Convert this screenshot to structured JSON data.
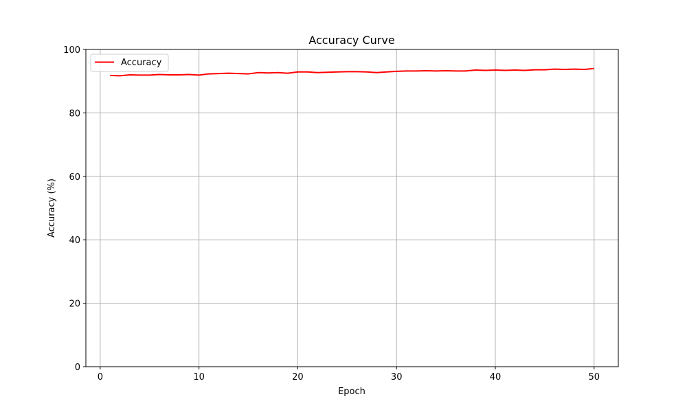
{
  "chart_data": {
    "type": "line",
    "title": "Accuracy Curve",
    "xlabel": "Epoch",
    "ylabel": "Accuracy (%)",
    "xlim": [
      -1.45,
      52.45
    ],
    "ylim": [
      0,
      100
    ],
    "xticks": [
      0,
      10,
      20,
      30,
      40,
      50
    ],
    "yticks": [
      0,
      20,
      40,
      60,
      80,
      100
    ],
    "grid": true,
    "legend_position": "upper-left",
    "series": [
      {
        "name": "Accuracy",
        "color": "#ff0000",
        "x": [
          1,
          2,
          3,
          4,
          5,
          6,
          7,
          8,
          9,
          10,
          11,
          12,
          13,
          14,
          15,
          16,
          17,
          18,
          19,
          20,
          21,
          22,
          23,
          24,
          25,
          26,
          27,
          28,
          29,
          30,
          31,
          32,
          33,
          34,
          35,
          36,
          37,
          38,
          39,
          40,
          41,
          42,
          43,
          44,
          45,
          46,
          47,
          48,
          49,
          50
        ],
        "y": [
          91.8,
          91.7,
          92.0,
          91.9,
          91.9,
          92.1,
          92.0,
          92.0,
          92.1,
          91.9,
          92.3,
          92.4,
          92.5,
          92.4,
          92.3,
          92.7,
          92.6,
          92.7,
          92.5,
          92.9,
          92.9,
          92.7,
          92.8,
          92.9,
          93.0,
          93.0,
          92.9,
          92.7,
          92.9,
          93.1,
          93.2,
          93.2,
          93.3,
          93.2,
          93.3,
          93.2,
          93.2,
          93.5,
          93.4,
          93.5,
          93.4,
          93.5,
          93.4,
          93.6,
          93.6,
          93.8,
          93.7,
          93.8,
          93.7,
          94.0
        ]
      }
    ]
  }
}
